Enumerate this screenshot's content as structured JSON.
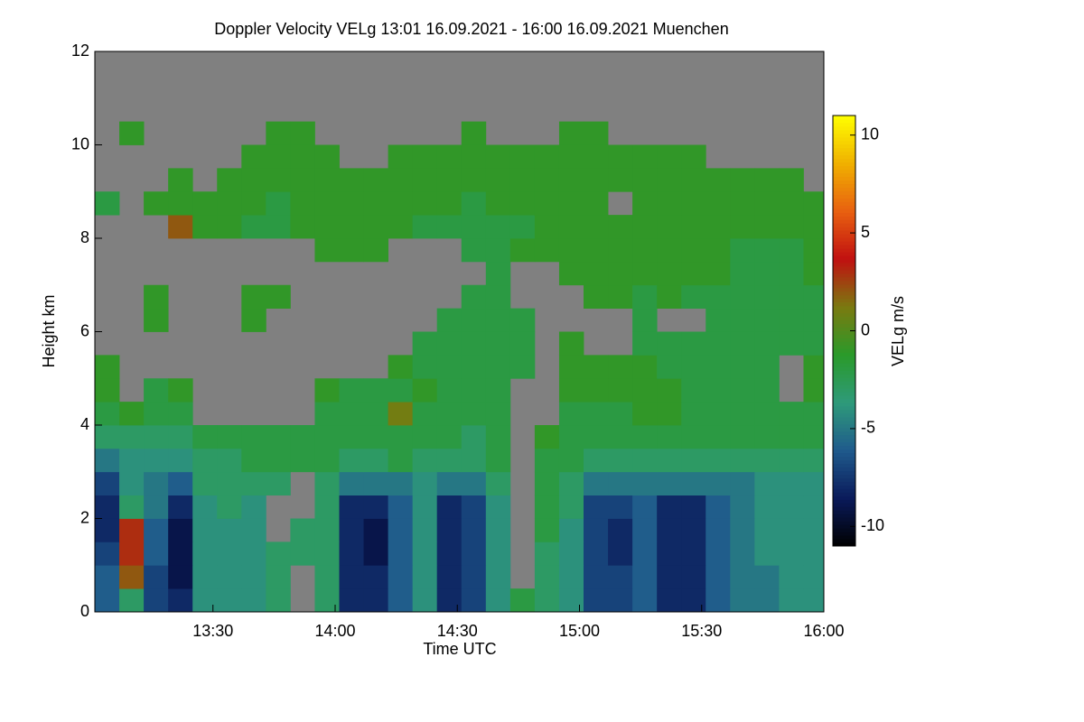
{
  "chart_data": {
    "type": "heatmap",
    "title": "Doppler Velocity VELg   13:01 16.09.2021 - 16:00 16.09.2021 Muenchen",
    "xlabel": "Time UTC",
    "ylabel": "Height km",
    "colorbar_label": "VELg m/s",
    "xlim": [
      781,
      960
    ],
    "ylim": [
      0,
      12
    ],
    "xticks": [
      {
        "value": 810,
        "label": "13:30"
      },
      {
        "value": 840,
        "label": "14:00"
      },
      {
        "value": 870,
        "label": "14:30"
      },
      {
        "value": 900,
        "label": "15:00"
      },
      {
        "value": 930,
        "label": "15:30"
      },
      {
        "value": 960,
        "label": "16:00"
      }
    ],
    "yticks": [
      0,
      2,
      4,
      6,
      8,
      10,
      12
    ],
    "zlim": [
      -11,
      11
    ],
    "zticks": [
      -10,
      -5,
      0,
      5,
      10
    ],
    "grid": false,
    "missing_color": "#808080",
    "colormap": [
      "#000000",
      "#0a1a5a",
      "#1f5a8c",
      "#2e9a7a",
      "#2a9a2a",
      "#7a7a10",
      "#c01010",
      "#e86010",
      "#f0b000",
      "#ffff00"
    ],
    "x": [
      781,
      787,
      793,
      799,
      805,
      811,
      817,
      823,
      829,
      835,
      841,
      847,
      853,
      859,
      865,
      871,
      877,
      883,
      889,
      895,
      901,
      907,
      913,
      919,
      925,
      931,
      937,
      943,
      949,
      955,
      960
    ],
    "y": [
      0,
      0.5,
      1,
      1.5,
      2,
      2.5,
      3,
      3.5,
      4,
      4.5,
      5,
      5.5,
      6,
      6.5,
      7,
      7.5,
      8,
      8.5,
      9,
      9.5,
      10,
      10.5
    ],
    "z": [
      [
        -6,
        -3,
        -7,
        -8,
        -4,
        -4,
        -4,
        -3,
        null,
        -3,
        -8,
        -8,
        -6,
        -4,
        -8,
        -7,
        -4,
        -2,
        -3,
        -4,
        -7,
        -7,
        -6,
        -8,
        -8,
        -6,
        -5,
        -5,
        -4,
        -4
      ],
      [
        -6,
        2,
        -7,
        -9,
        -4,
        -4,
        -4,
        -3,
        null,
        -3,
        -8,
        -8,
        -6,
        -4,
        -8,
        -7,
        -4,
        null,
        -3,
        -4,
        -7,
        -7,
        -6,
        -8,
        -8,
        -6,
        -5,
        -5,
        -4,
        -4
      ],
      [
        -7,
        3,
        -6,
        -9,
        -4,
        -4,
        -4,
        -3,
        -3,
        -3,
        -8,
        -9,
        -6,
        -4,
        -8,
        -7,
        -4,
        null,
        -3,
        -4,
        -7,
        -8,
        -6,
        -8,
        -8,
        -6,
        -5,
        -4,
        -4,
        -4
      ],
      [
        -8,
        3,
        -6,
        -9,
        -4,
        -4,
        -4,
        null,
        -3,
        -3,
        -8,
        -9,
        -6,
        -4,
        -8,
        -7,
        -4,
        null,
        -2,
        -4,
        -7,
        -8,
        -6,
        -8,
        -8,
        -6,
        -5,
        -4,
        -4,
        -4
      ],
      [
        -8,
        -3,
        -5,
        -8,
        -4,
        -3,
        -4,
        null,
        null,
        -3,
        -8,
        -8,
        -6,
        -4,
        -8,
        -7,
        -4,
        null,
        -2,
        -3,
        -7,
        -7,
        -6,
        -8,
        -8,
        -6,
        -5,
        -4,
        -4,
        -4
      ],
      [
        -7,
        -4,
        -5,
        -6,
        -3,
        -3,
        -3,
        -3,
        null,
        -3,
        -5,
        -5,
        -5,
        -4,
        -5,
        -5,
        -3,
        null,
        -2,
        -3,
        -5,
        -5,
        -5,
        -5,
        -5,
        -5,
        -5,
        -4,
        -4,
        -4
      ],
      [
        -5,
        -4,
        -4,
        -4,
        -3,
        -3,
        -2,
        -2,
        -2,
        -2,
        -3,
        -3,
        -2,
        -3,
        -3,
        -3,
        -2,
        null,
        -2,
        -2,
        -3,
        -3,
        -3,
        -3,
        -3,
        -3,
        -3,
        -3,
        -3,
        -3
      ],
      [
        -3,
        -3,
        -3,
        -3,
        -2,
        -2,
        -2,
        -2,
        -2,
        -2,
        -2,
        -2,
        -2,
        -2,
        -2,
        -3,
        -2,
        null,
        -1,
        -2,
        -2,
        -2,
        -2,
        -2,
        -2,
        -2,
        -2,
        -2,
        -2,
        -2
      ],
      [
        -2,
        -1,
        -2,
        -2,
        null,
        null,
        null,
        null,
        null,
        -2,
        -2,
        -2,
        1,
        -2,
        -2,
        -2,
        -2,
        null,
        null,
        -2,
        -2,
        -2,
        -1,
        -1,
        -2,
        -2,
        -2,
        -2,
        -2,
        -2
      ],
      [
        -1,
        null,
        -2,
        -1,
        null,
        null,
        null,
        null,
        null,
        -1,
        -2,
        -2,
        -2,
        -1,
        -2,
        -2,
        -2,
        null,
        null,
        -1,
        -1,
        -1,
        -1,
        -1,
        -2,
        -2,
        -2,
        -2,
        null,
        -1
      ],
      [
        -1,
        null,
        null,
        null,
        null,
        null,
        null,
        null,
        null,
        null,
        null,
        null,
        -1,
        -2,
        -2,
        -2,
        -2,
        -2,
        null,
        -1,
        -1,
        -1,
        -1,
        -2,
        -2,
        -2,
        -2,
        -2,
        null,
        -1
      ],
      [
        null,
        null,
        null,
        null,
        null,
        null,
        null,
        null,
        null,
        null,
        null,
        null,
        null,
        -2,
        -2,
        -2,
        -2,
        -2,
        null,
        -1,
        null,
        null,
        -2,
        -2,
        -2,
        -2,
        -2,
        -2,
        -2,
        -2
      ],
      [
        null,
        null,
        -1,
        null,
        null,
        null,
        -1,
        null,
        null,
        null,
        null,
        null,
        null,
        null,
        -2,
        -2,
        -2,
        -2,
        null,
        null,
        null,
        null,
        -2,
        null,
        null,
        -2,
        -2,
        -2,
        -2,
        -2
      ],
      [
        null,
        null,
        -1,
        null,
        null,
        null,
        -1,
        -1,
        null,
        null,
        null,
        null,
        null,
        null,
        null,
        -2,
        -2,
        null,
        null,
        null,
        -1,
        -1,
        -2,
        -1,
        -2,
        -2,
        -2,
        -2,
        -2,
        -2
      ],
      [
        null,
        null,
        null,
        null,
        null,
        null,
        null,
        null,
        null,
        null,
        null,
        null,
        null,
        null,
        null,
        null,
        -2,
        null,
        null,
        -1,
        -1,
        -1,
        -1,
        -1,
        -1,
        -1,
        -2,
        -2,
        -2,
        -1
      ],
      [
        null,
        null,
        null,
        null,
        null,
        null,
        null,
        null,
        null,
        -1,
        -1,
        -1,
        null,
        null,
        null,
        -2,
        -2,
        -1,
        -1,
        -1,
        -1,
        -1,
        -1,
        -1,
        -1,
        -1,
        -2,
        -2,
        -2,
        -1
      ],
      [
        null,
        null,
        null,
        2,
        -1,
        -1,
        -2,
        -2,
        -1,
        -1,
        -1,
        -1,
        -1,
        -2,
        -2,
        -2,
        -2,
        -2,
        -1,
        -1,
        -1,
        -1,
        -1,
        -1,
        -1,
        -1,
        -1,
        -1,
        -1,
        -1
      ],
      [
        -2,
        null,
        -1,
        -1,
        -1,
        -1,
        -1,
        -2,
        -1,
        -1,
        -1,
        -1,
        -1,
        -1,
        -1,
        -2,
        -1,
        -1,
        -1,
        -1,
        -1,
        null,
        -1,
        -1,
        -1,
        -1,
        -1,
        -1,
        -1,
        -1
      ],
      [
        null,
        null,
        null,
        -1,
        null,
        -1,
        -1,
        -1,
        -1,
        -1,
        -1,
        -1,
        -1,
        -1,
        -1,
        -1,
        -1,
        -1,
        -1,
        -1,
        -1,
        -1,
        -1,
        -1,
        -1,
        -1,
        -1,
        -1,
        -1,
        null
      ],
      [
        null,
        null,
        null,
        null,
        null,
        null,
        -1,
        -1,
        -1,
        -1,
        null,
        null,
        -1,
        -1,
        -1,
        -1,
        -1,
        -1,
        -1,
        -1,
        -1,
        -1,
        -1,
        -1,
        -1,
        null,
        null,
        null,
        null,
        null
      ],
      [
        null,
        -1,
        null,
        null,
        null,
        null,
        null,
        -1,
        -1,
        null,
        null,
        null,
        null,
        null,
        null,
        -1,
        null,
        null,
        null,
        -1,
        -1,
        null,
        null,
        null,
        null,
        null,
        null,
        null,
        null,
        null
      ]
    ]
  }
}
